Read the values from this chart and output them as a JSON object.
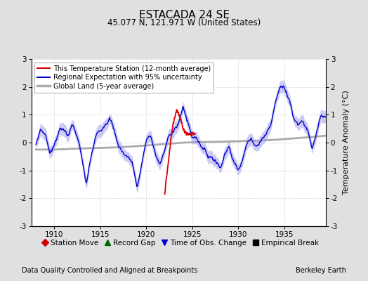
{
  "title": "ESTACADA 24 SE",
  "subtitle": "45.077 N, 121.971 W (United States)",
  "xlabel_bottom": "Data Quality Controlled and Aligned at Breakpoints",
  "xlabel_right": "Berkeley Earth",
  "ylabel": "Temperature Anomaly (°C)",
  "xlim": [
    1907.5,
    1939.5
  ],
  "ylim": [
    -3,
    3
  ],
  "yticks": [
    -3,
    -2,
    -1,
    0,
    1,
    2,
    3
  ],
  "xticks": [
    1910,
    1915,
    1920,
    1925,
    1930,
    1935
  ],
  "bg_color": "#e0e0e0",
  "plot_bg_color": "#ffffff",
  "regional_color": "#0000cc",
  "regional_fill_color": "#9999ee",
  "station_color": "#dd0000",
  "global_color": "#aaaaaa",
  "legend_items": [
    {
      "label": "This Temperature Station (12-month average)",
      "color": "#dd0000",
      "lw": 1.5
    },
    {
      "label": "Regional Expectation with 95% uncertainty",
      "color": "#0000cc",
      "lw": 1.5
    },
    {
      "label": "Global Land (5-year average)",
      "color": "#aaaaaa",
      "lw": 2.5
    }
  ],
  "bottom_legend": [
    {
      "label": "Station Move",
      "color": "#cc0000",
      "marker": "D"
    },
    {
      "label": "Record Gap",
      "color": "#006600",
      "marker": "^"
    },
    {
      "label": "Time of Obs. Change",
      "color": "#0000cc",
      "marker": "v"
    },
    {
      "label": "Empirical Break",
      "color": "#000000",
      "marker": "s"
    }
  ]
}
